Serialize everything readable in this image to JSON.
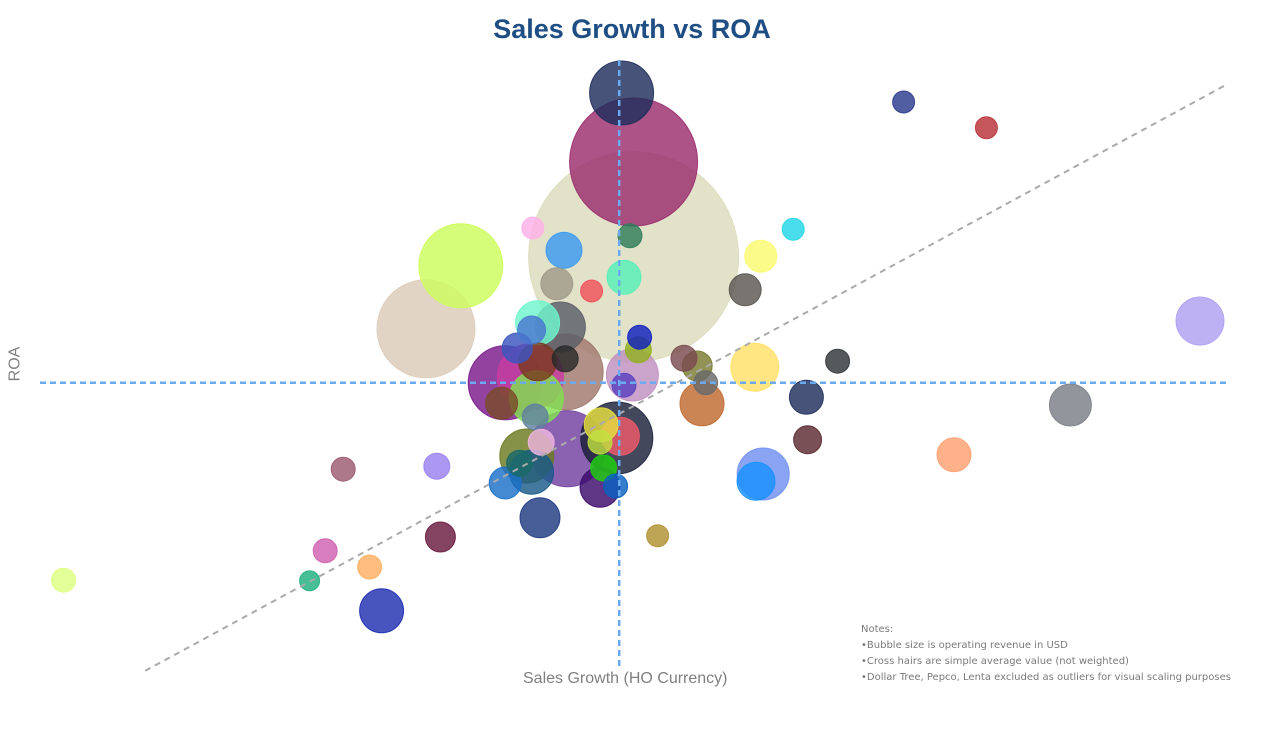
{
  "chart_data": {
    "type": "scatter",
    "subtype": "bubble",
    "title": "Sales Growth vs ROA",
    "xlabel": "Sales Growth (HO Currency)",
    "ylabel": "ROA",
    "xlim": [
      0,
      100
    ],
    "ylim": [
      0,
      105
    ],
    "grid": false,
    "legend": "none",
    "crosshair": {
      "x": 49.1,
      "y": 51.2,
      "color": "#6aaaf0"
    },
    "trendline": {
      "x": [
        9.6,
        99.8
      ],
      "y": [
        3.2,
        101
      ],
      "color": "#aaaaaa"
    },
    "notes": [
      "Notes:",
      "•Bubble size is operating revenue in USD",
      "•Cross hairs are simple average value (not weighted)",
      "•Dollar Tree, Pepco, Lenta excluded as outliers for visual scaling purposes"
    ],
    "points": [
      {
        "x": 50.3,
        "y": 72.2,
        "size": 11025,
        "color": "#dcdcbc"
      },
      {
        "x": 50.3,
        "y": 88.0,
        "size": 4096,
        "color": "#9b2d6e"
      },
      {
        "x": 33.0,
        "y": 60.2,
        "size": 2401,
        "color": "#dccbb8"
      },
      {
        "x": 35.9,
        "y": 70.7,
        "size": 1764,
        "color": "#cdfc5d"
      },
      {
        "x": 49.3,
        "y": 99.5,
        "size": 1024,
        "color": "#1f2d5c"
      },
      {
        "x": 44.6,
        "y": 53.0,
        "size": 1444,
        "color": "#a0786c"
      },
      {
        "x": 39.6,
        "y": 51.2,
        "size": 1369,
        "color": "#7a1a8a"
      },
      {
        "x": 41.7,
        "y": 52.2,
        "size": 1089,
        "color": "#c83ca0"
      },
      {
        "x": 44.8,
        "y": 40.2,
        "size": 1444,
        "color": "#7040a0"
      },
      {
        "x": 48.9,
        "y": 42.0,
        "size": 1296,
        "color": "#1a2038"
      },
      {
        "x": 42.2,
        "y": 48.7,
        "size": 729,
        "color": "#82e050"
      },
      {
        "x": 41.4,
        "y": 39.0,
        "size": 729,
        "color": "#6a7a20"
      },
      {
        "x": 50.2,
        "y": 52.5,
        "size": 676,
        "color": "#c090c0"
      },
      {
        "x": 61.1,
        "y": 36.0,
        "size": 676,
        "color": "#7090f0"
      },
      {
        "x": 44.2,
        "y": 60.5,
        "size": 625,
        "color": "#5a5e66"
      },
      {
        "x": 42.3,
        "y": 61.2,
        "size": 484,
        "color": "#6ef5cc"
      },
      {
        "x": 97.5,
        "y": 61.5,
        "size": 576,
        "color": "#b0a0f0"
      },
      {
        "x": 60.4,
        "y": 53.8,
        "size": 576,
        "color": "#ffe066"
      },
      {
        "x": 56.0,
        "y": 47.7,
        "size": 484,
        "color": "#c06a30"
      },
      {
        "x": 41.8,
        "y": 36.3,
        "size": 484,
        "color": "#1a5a8a"
      },
      {
        "x": 29.3,
        "y": 13.2,
        "size": 484,
        "color": "#2030b0"
      },
      {
        "x": 86.7,
        "y": 47.5,
        "size": 441,
        "color": "#7a7e86"
      },
      {
        "x": 47.5,
        "y": 33.8,
        "size": 400,
        "color": "#3a0a6a"
      },
      {
        "x": 42.5,
        "y": 28.7,
        "size": 400,
        "color": "#1f3a80"
      },
      {
        "x": 42.3,
        "y": 54.7,
        "size": 361,
        "color": "#7a3a20"
      },
      {
        "x": 49.2,
        "y": 42.3,
        "size": 361,
        "color": "#f05a6a"
      },
      {
        "x": 60.5,
        "y": 34.8,
        "size": 361,
        "color": "#1890ff"
      },
      {
        "x": 44.5,
        "y": 73.3,
        "size": 324,
        "color": "#3b9af0"
      },
      {
        "x": 49.5,
        "y": 68.8,
        "size": 289,
        "color": "#55f0b8"
      },
      {
        "x": 47.6,
        "y": 44.2,
        "size": 289,
        "color": "#e8e040"
      },
      {
        "x": 64.7,
        "y": 48.8,
        "size": 289,
        "color": "#1f2d5c"
      },
      {
        "x": 77.0,
        "y": 39.2,
        "size": 289,
        "color": "#ffa070"
      },
      {
        "x": 60.9,
        "y": 72.3,
        "size": 256,
        "color": "#fafa70"
      },
      {
        "x": 43.9,
        "y": 67.7,
        "size": 256,
        "color": "#a0988a"
      },
      {
        "x": 59.6,
        "y": 66.7,
        "size": 256,
        "color": "#5a5550"
      },
      {
        "x": 39.3,
        "y": 47.8,
        "size": 256,
        "color": "#7a4a2a"
      },
      {
        "x": 39.6,
        "y": 34.5,
        "size": 256,
        "color": "#1a70c8"
      },
      {
        "x": 40.6,
        "y": 57.0,
        "size": 225,
        "color": "#3a55c0"
      },
      {
        "x": 55.6,
        "y": 54.0,
        "size": 225,
        "color": "#7a7a30"
      },
      {
        "x": 34.2,
        "y": 25.5,
        "size": 225,
        "color": "#6a1a40"
      },
      {
        "x": 41.8,
        "y": 60.0,
        "size": 196,
        "color": "#4a78d0"
      },
      {
        "x": 64.8,
        "y": 41.7,
        "size": 196,
        "color": "#5a2a30"
      },
      {
        "x": 44.6,
        "y": 55.2,
        "size": 169,
        "color": "#2a2a2a"
      },
      {
        "x": 42.1,
        "y": 45.5,
        "size": 169,
        "color": "#6080a0"
      },
      {
        "x": 50.7,
        "y": 56.7,
        "size": 169,
        "color": "#90b020"
      },
      {
        "x": 54.5,
        "y": 55.3,
        "size": 169,
        "color": "#7a4a50"
      },
      {
        "x": 47.8,
        "y": 37.0,
        "size": 169,
        "color": "#20d010"
      },
      {
        "x": 40.8,
        "y": 37.8,
        "size": 169,
        "color": "#1a6a6a"
      },
      {
        "x": 42.6,
        "y": 41.3,
        "size": 169,
        "color": "#f0b8e0"
      },
      {
        "x": 33.9,
        "y": 37.3,
        "size": 169,
        "color": "#9a80f0"
      },
      {
        "x": 50.0,
        "y": 75.7,
        "size": 144,
        "color": "#2e7d5a"
      },
      {
        "x": 50.8,
        "y": 58.8,
        "size": 144,
        "color": "#1020c0"
      },
      {
        "x": 49.5,
        "y": 50.8,
        "size": 144,
        "color": "#5a40c0"
      },
      {
        "x": 56.3,
        "y": 51.2,
        "size": 144,
        "color": "#6a6a6a"
      },
      {
        "x": 67.3,
        "y": 54.8,
        "size": 144,
        "color": "#303438"
      },
      {
        "x": 47.5,
        "y": 41.3,
        "size": 144,
        "color": "#c0e040"
      },
      {
        "x": 48.8,
        "y": 34.0,
        "size": 144,
        "color": "#0a60c0"
      },
      {
        "x": 26.1,
        "y": 36.8,
        "size": 144,
        "color": "#9a5a70"
      },
      {
        "x": 24.6,
        "y": 23.2,
        "size": 144,
        "color": "#d060b0"
      },
      {
        "x": 28.3,
        "y": 20.5,
        "size": 144,
        "color": "#ffb060"
      },
      {
        "x": 2.8,
        "y": 18.3,
        "size": 144,
        "color": "#ddff80"
      },
      {
        "x": 72.8,
        "y": 98.0,
        "size": 121,
        "color": "#2b3a8c"
      },
      {
        "x": 79.7,
        "y": 93.7,
        "size": 121,
        "color": "#b83238"
      },
      {
        "x": 41.9,
        "y": 77.0,
        "size": 121,
        "color": "#ffb0e8"
      },
      {
        "x": 63.6,
        "y": 76.8,
        "size": 121,
        "color": "#22d6e6"
      },
      {
        "x": 46.8,
        "y": 66.5,
        "size": 121,
        "color": "#f0505a"
      },
      {
        "x": 52.3,
        "y": 25.7,
        "size": 121,
        "color": "#b09030"
      },
      {
        "x": 23.3,
        "y": 18.2,
        "size": 100,
        "color": "#20b080"
      }
    ]
  }
}
